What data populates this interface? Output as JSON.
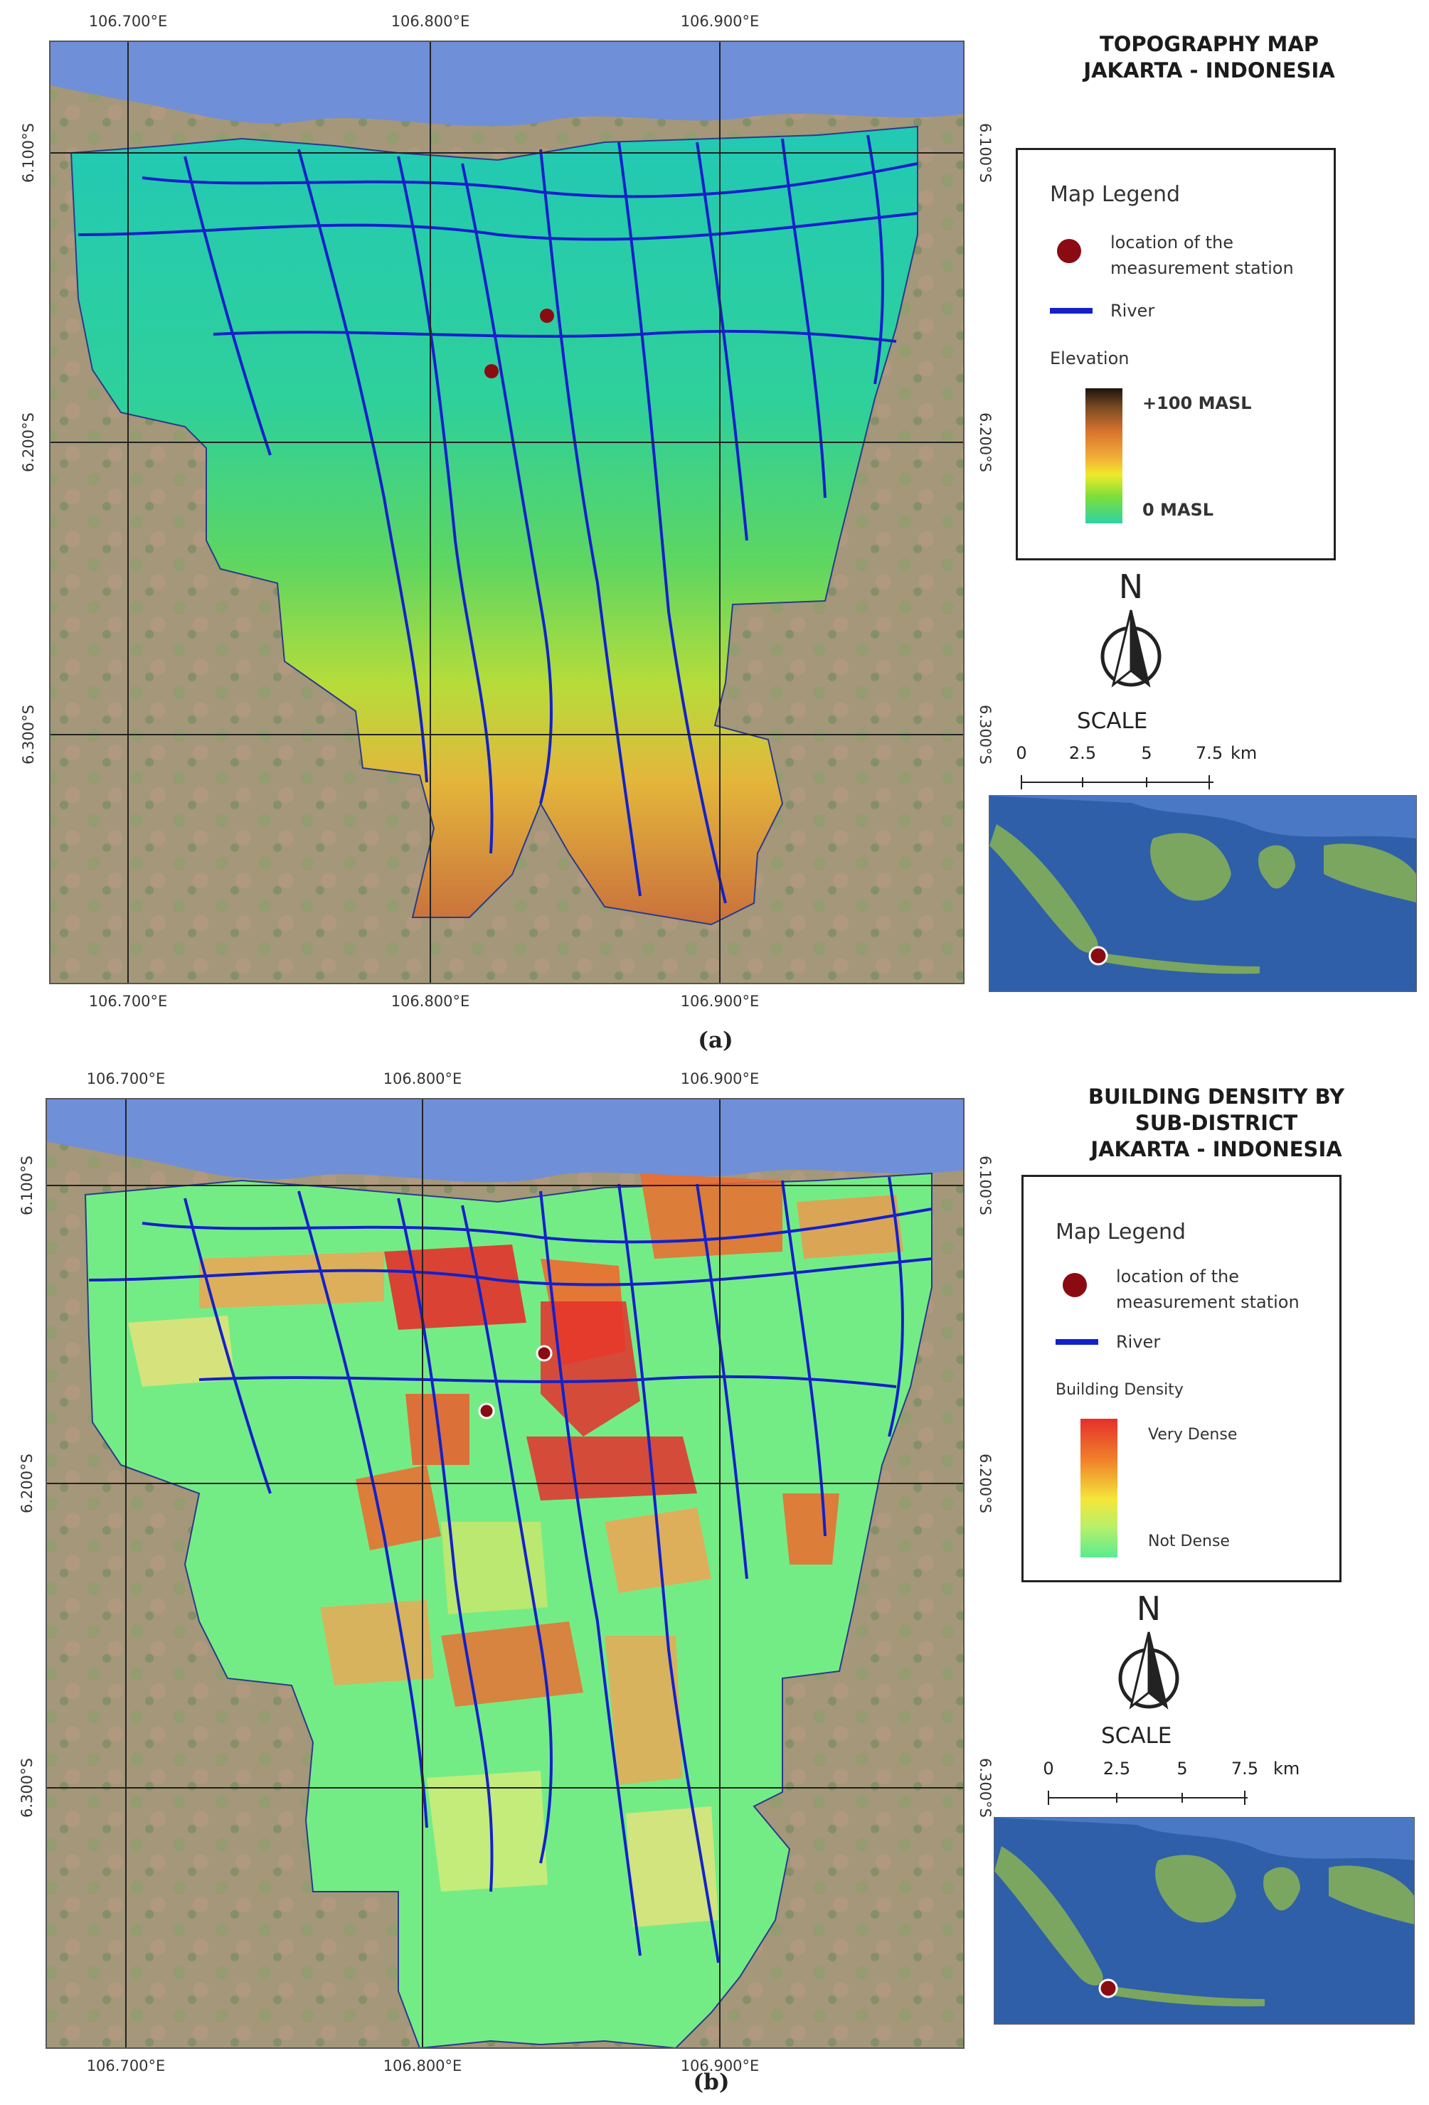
{
  "maps": [
    {
      "title_lines": [
        "TOPOGRAPHY MAP",
        "JAKARTA  - INDONESIA"
      ],
      "caption": "(a)",
      "legend": {
        "title": "Map Legend",
        "station_label_1": "location of the",
        "station_label_2": "measurement station",
        "river_label": "River",
        "ramp_title": "Elevation",
        "ramp_high": "+100 MASL",
        "ramp_low": "0 MASL"
      },
      "north": "N",
      "scale": {
        "title": "SCALE",
        "ticks": [
          "0",
          "2.5",
          "5",
          "7.5"
        ],
        "unit": "km"
      }
    },
    {
      "title_lines": [
        "BUILDING DENSITY BY",
        "SUB-DISTRICT",
        "JAKARTA - INDONESIA"
      ],
      "caption": "(b)",
      "legend": {
        "title": "Map Legend",
        "station_label_1": "location of the",
        "station_label_2": "measurement station",
        "river_label": "River",
        "ramp_title": "Building Density",
        "ramp_high": "Very Dense",
        "ramp_low": "Not Dense"
      },
      "north": "N",
      "scale": {
        "title": "SCALE",
        "ticks": [
          "0",
          "2.5",
          "5",
          "7.5"
        ],
        "unit": "km"
      }
    }
  ],
  "coordinates": {
    "lon_labels": [
      "106.700°E",
      "106.800°E",
      "106.900°E"
    ],
    "lat_labels": [
      "6.100°S",
      "6.200°S",
      "6.300°S"
    ]
  },
  "colors": {
    "river": "#1421c9",
    "station": "#8b0b12",
    "sea": "#6f8fd8",
    "satellite_land": "#a4977a",
    "elevation_low": "#2dd3a6",
    "elevation_high": "#1c1410",
    "density_low": "#59ec8f",
    "density_high": "#e5302b"
  }
}
